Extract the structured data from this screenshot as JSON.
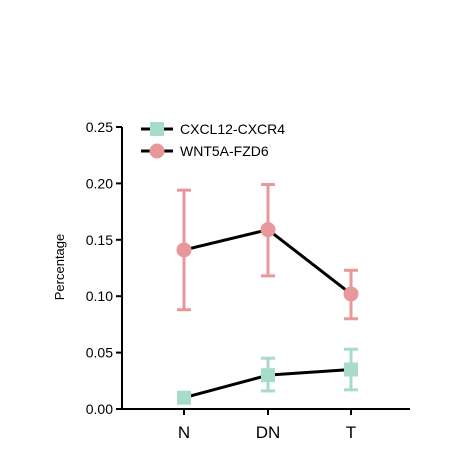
{
  "chart_data": {
    "type": "line",
    "categories": [
      "N",
      "DN",
      "T"
    ],
    "ylabel": "Percentage",
    "xlabel": "",
    "ylim": [
      0,
      0.25
    ],
    "yticks": [
      0.0,
      0.05,
      0.1,
      0.15,
      0.2,
      0.25
    ],
    "ytick_labels": [
      "0.00",
      "0.05",
      "0.10",
      "0.15",
      "0.20",
      "0.25"
    ],
    "legend_position": "top-left",
    "grid": false,
    "series": [
      {
        "name": "CXCL12-CXCR4",
        "marker": "square",
        "color": "#a8dcca",
        "line_color": "#000000",
        "values": [
          0.01,
          0.03,
          0.035
        ],
        "err_low": [
          0.01,
          0.016,
          0.017
        ],
        "err_high": [
          0.01,
          0.045,
          0.053
        ]
      },
      {
        "name": "WNT5A-FZD6",
        "marker": "circle",
        "color": "#e8979a",
        "line_color": "#000000",
        "values": [
          0.141,
          0.159,
          0.102
        ],
        "err_low": [
          0.088,
          0.118,
          0.08
        ],
        "err_high": [
          0.194,
          0.199,
          0.123
        ]
      }
    ]
  }
}
